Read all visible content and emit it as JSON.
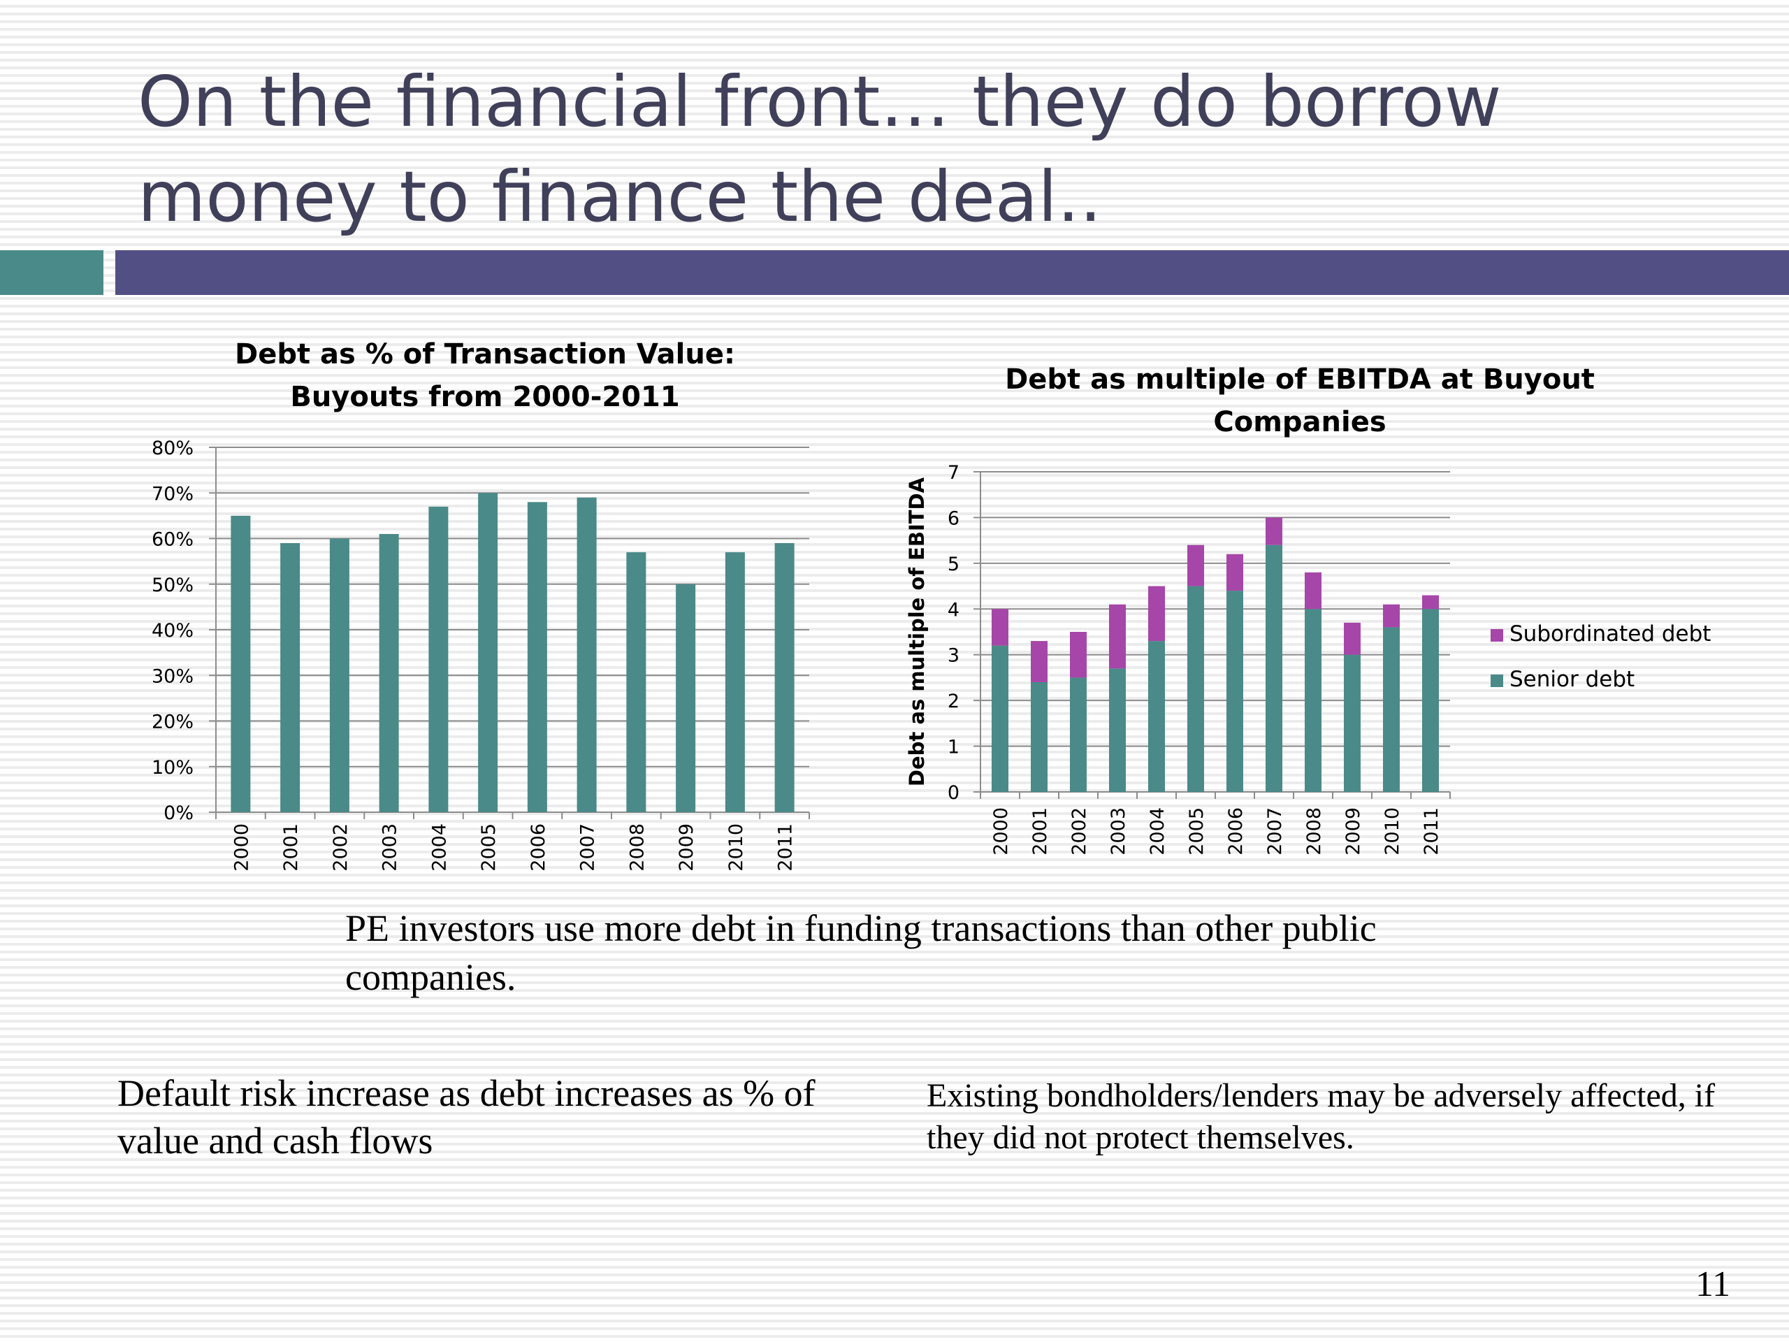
{
  "slide": {
    "title": "On the financial front… they do borrow money to finance the deal..",
    "text_main": "PE investors use more debt in funding transactions than other public companies.",
    "text_left": "Default risk increase as debt increases as % of value and cash flows",
    "text_right": "Existing bondholders/lenders may be adversely affected, if they did not protect themselves.",
    "page_number": "11"
  },
  "colors": {
    "teal": "#4a8a88",
    "navy": "#524f84",
    "title": "#40405a",
    "purple": "#a646a8",
    "grid": "#8c8c8c"
  },
  "chart_data": [
    {
      "type": "bar",
      "title": [
        "Debt as % of Transaction Value:",
        "Buyouts from 2000-2011"
      ],
      "xlabel": "",
      "ylabel": "",
      "categories": [
        "2000",
        "2001",
        "2002",
        "2003",
        "2004",
        "2005",
        "2006",
        "2007",
        "2008",
        "2009",
        "2010",
        "2011"
      ],
      "values": [
        65,
        59,
        60,
        61,
        67,
        70,
        68,
        69,
        57,
        50,
        57,
        59
      ],
      "ylim": [
        0,
        80
      ],
      "yticks": [
        "0%",
        "10%",
        "20%",
        "30%",
        "40%",
        "50%",
        "60%",
        "70%",
        "80%"
      ],
      "grid": true,
      "color": "#4a8a88"
    },
    {
      "type": "bar",
      "stacked": true,
      "title": [
        "Debt as multiple of EBITDA at Buyout",
        "Companies"
      ],
      "xlabel": "",
      "ylabel": "Debt as multiple of EBITDA",
      "categories": [
        "2000",
        "2001",
        "2002",
        "2003",
        "2004",
        "2005",
        "2006",
        "2007",
        "2008",
        "2009",
        "2010",
        "2011"
      ],
      "series": [
        {
          "name": "Senior debt",
          "color": "#4a8a88",
          "values": [
            3.2,
            2.4,
            2.5,
            2.7,
            3.3,
            4.5,
            4.4,
            5.4,
            4.0,
            3.0,
            3.6,
            4.0
          ]
        },
        {
          "name": "Subordinated debt",
          "color": "#a646a8",
          "values": [
            0.8,
            0.9,
            1.0,
            1.4,
            1.2,
            0.9,
            0.8,
            0.6,
            0.8,
            0.7,
            0.5,
            0.3
          ]
        }
      ],
      "ylim": [
        0,
        7
      ],
      "yticks": [
        "0",
        "1",
        "2",
        "3",
        "4",
        "5",
        "6",
        "7"
      ],
      "grid": true,
      "legend": "right"
    }
  ]
}
